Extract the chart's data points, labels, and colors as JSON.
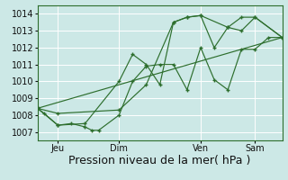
{
  "xlabel": "Pression niveau de la mer( hPa )",
  "background_color": "#cce8e6",
  "grid_color": "#ffffff",
  "line_color": "#2d6e2d",
  "spine_color": "#2d6e2d",
  "ylim": [
    1006.5,
    1014.5
  ],
  "xlim": [
    0,
    108
  ],
  "x_ticks": [
    9,
    36,
    72,
    96
  ],
  "x_tick_labels": [
    "Jeu",
    "Dim",
    "Ven",
    "Sam"
  ],
  "vline_positions": [
    9,
    36,
    72,
    96
  ],
  "series": [
    [
      0,
      1008.4,
      3,
      1008.1,
      9,
      1007.4,
      15,
      1007.5,
      21,
      1007.3,
      24,
      1007.1,
      27,
      1007.1,
      36,
      1008.0,
      42,
      1010.0,
      48,
      1010.9,
      54,
      1011.0,
      60,
      1011.0,
      66,
      1009.5,
      72,
      1012.0,
      78,
      1010.1,
      84,
      1009.5,
      90,
      1011.9,
      96,
      1011.9,
      102,
      1012.6,
      108,
      1012.6
    ],
    [
      0,
      1008.4,
      9,
      1007.4,
      21,
      1007.5,
      36,
      1010.0,
      42,
      1011.6,
      48,
      1011.0,
      54,
      1009.8,
      60,
      1013.5,
      66,
      1013.8,
      72,
      1013.9,
      78,
      1012.0,
      84,
      1013.2,
      90,
      1013.0,
      96,
      1013.8,
      108,
      1012.6
    ],
    [
      0,
      1008.4,
      9,
      1008.1,
      36,
      1008.3,
      48,
      1009.8,
      60,
      1013.5,
      66,
      1013.8,
      72,
      1013.9,
      84,
      1013.2,
      90,
      1013.8,
      96,
      1013.8,
      108,
      1012.6
    ],
    [
      0,
      1008.4,
      108,
      1012.6
    ]
  ],
  "label_fontsize": 9,
  "tick_fontsize": 7
}
